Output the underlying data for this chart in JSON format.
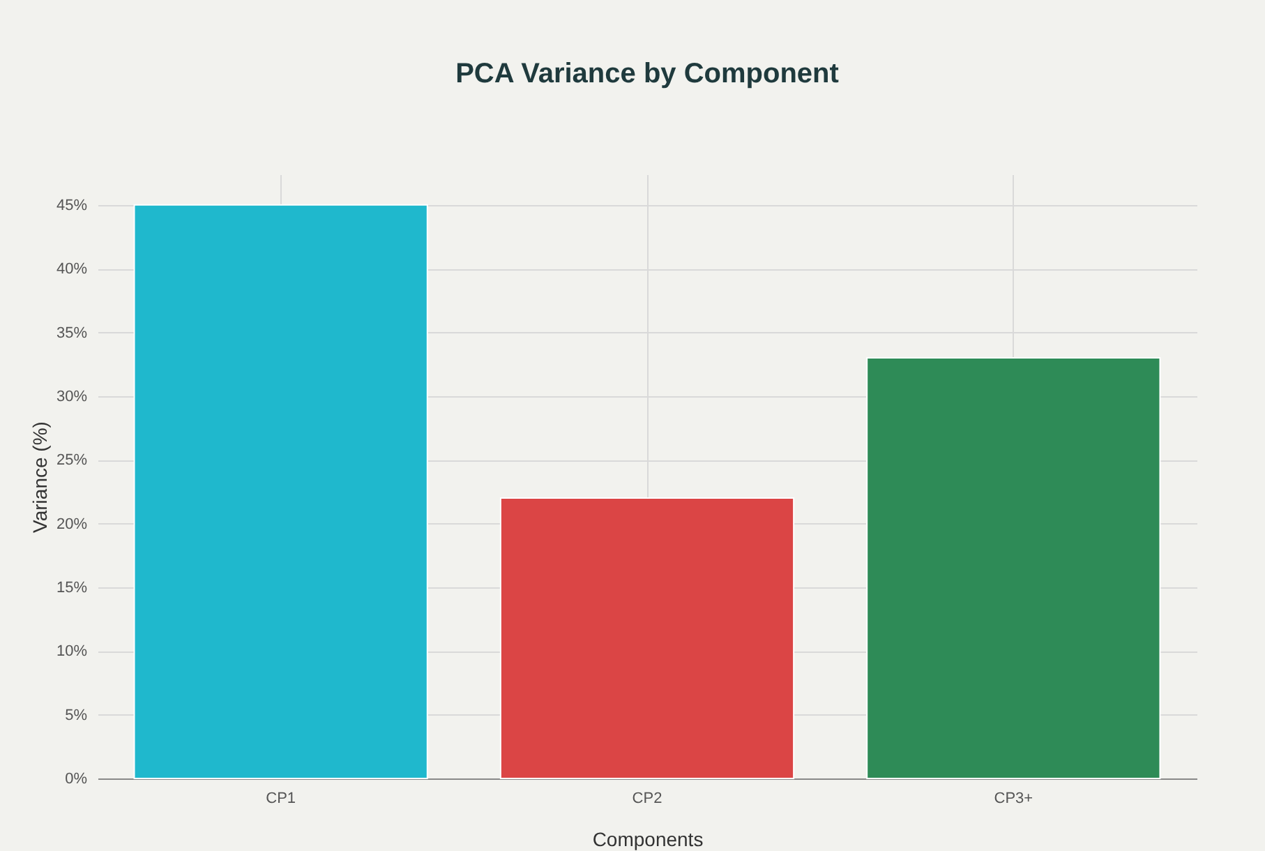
{
  "chart_data": {
    "type": "bar",
    "title": "PCA Variance by Component",
    "xlabel": "Components",
    "ylabel": "Variance (%)",
    "categories": [
      "CP1",
      "CP2",
      "CP3+"
    ],
    "values": [
      45,
      22,
      33
    ],
    "colors": [
      "#1fb8cd",
      "#db4545",
      "#2e8b57"
    ],
    "ylim": [
      0,
      47.4
    ],
    "yticks": [
      {
        "value": 0,
        "label": "0%"
      },
      {
        "value": 5,
        "label": "5%"
      },
      {
        "value": 10,
        "label": "10%"
      },
      {
        "value": 15,
        "label": "15%"
      },
      {
        "value": 20,
        "label": "20%"
      },
      {
        "value": 25,
        "label": "25%"
      },
      {
        "value": 30,
        "label": "30%"
      },
      {
        "value": 35,
        "label": "35%"
      },
      {
        "value": 40,
        "label": "40%"
      },
      {
        "value": 45,
        "label": "45%"
      }
    ],
    "grid": true
  }
}
